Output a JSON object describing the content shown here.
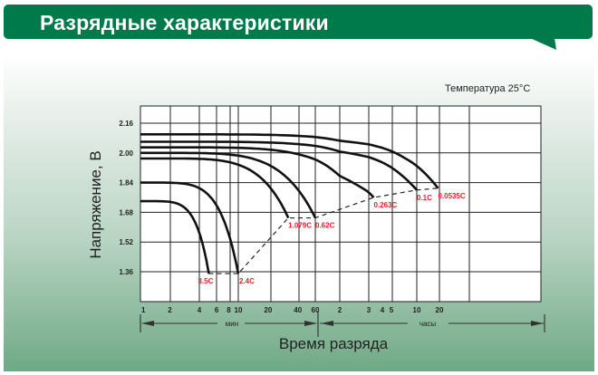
{
  "header": {
    "title": "Разрядные характеристики"
  },
  "temperature_note": "Температура 25°C",
  "colors": {
    "header_bg": "#007a4a",
    "curve": "#111111",
    "label": "#e8202a"
  },
  "chart_data": {
    "type": "line",
    "title": "",
    "xlabel": "Время разряда",
    "ylabel": "Напряжение, В",
    "x_scale": "log",
    "x_unit_note": "x values in minutes",
    "x_range_min": [
      1,
      3000
    ],
    "ylim": [
      1.2,
      2.25
    ],
    "grid": true,
    "y_ticks": [
      2.16,
      2.0,
      1.84,
      1.68,
      1.52,
      1.36
    ],
    "y_tick_labels": [
      "2.16",
      "2.00",
      "1.84",
      "1.68",
      "1.52",
      "1.36"
    ],
    "x_ticks": [
      {
        "label": "1",
        "min": 1
      },
      {
        "label": "2",
        "min": 2
      },
      {
        "label": "4",
        "min": 4
      },
      {
        "label": "6",
        "min": 6
      },
      {
        "label": "8",
        "min": 8
      },
      {
        "label": "10",
        "min": 10
      },
      {
        "label": "20",
        "min": 20
      },
      {
        "label": "40",
        "min": 40
      },
      {
        "label": "60",
        "min": 60
      },
      {
        "label": "2",
        "min": 120
      },
      {
        "label": "3",
        "min": 180
      },
      {
        "label": "4",
        "min": 240
      },
      {
        "label": "5",
        "min": 300
      },
      {
        "label": "10",
        "min": 600
      },
      {
        "label": "20",
        "min": 1200
      }
    ],
    "x_unit_labels": {
      "minutes": "мин",
      "hours": "часы"
    },
    "series": [
      {
        "name": "3.5C",
        "start_v": 1.74,
        "end_min": 5,
        "end_v": 1.35
      },
      {
        "name": "2.4C",
        "start_v": 1.84,
        "end_min": 10,
        "end_v": 1.35
      },
      {
        "name": "1.079C",
        "start_v": 1.97,
        "end_min": 32,
        "end_v": 1.65
      },
      {
        "name": "0.62C",
        "start_v": 2.0,
        "end_min": 60,
        "end_v": 1.65
      },
      {
        "name": "0.263C",
        "start_v": 2.03,
        "end_min": 200,
        "end_v": 1.76
      },
      {
        "name": "0.1C",
        "start_v": 2.06,
        "end_min": 600,
        "end_v": 1.8
      },
      {
        "name": "0.0535C",
        "start_v": 2.1,
        "end_min": 1150,
        "end_v": 1.81
      }
    ]
  }
}
